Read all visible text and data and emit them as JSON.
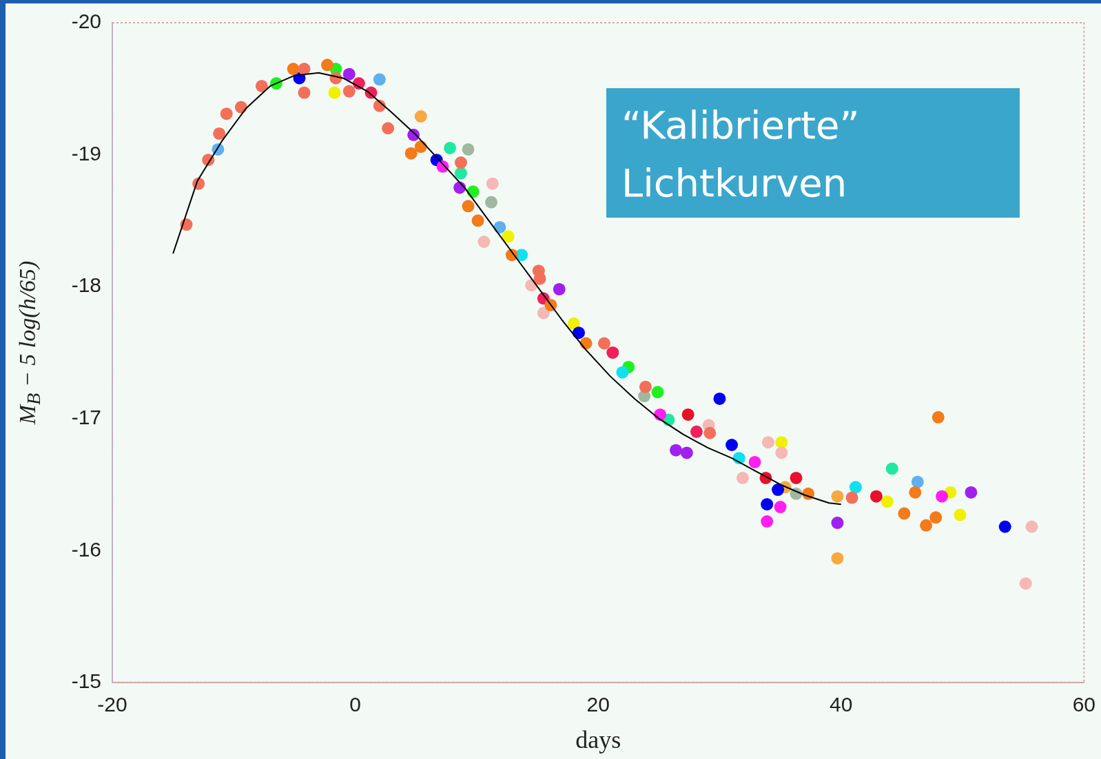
{
  "chart_data": {
    "type": "scatter",
    "xlabel": "days",
    "ylabel": "M$_{B}$ − 5 log(h/65)",
    "annotations": [
      "“Kalibrierte”\nLichtkurven"
    ],
    "xlim": [
      -20,
      60
    ],
    "xticks": [
      -20,
      0,
      20,
      40,
      60
    ],
    "ylim": [
      -15,
      -20
    ],
    "yticks": [
      -20,
      -19,
      -18,
      -17,
      -16,
      -15
    ],
    "marker": "circle",
    "legend": false,
    "series": [
      {
        "type": "line",
        "marker": "none",
        "color": "#000000",
        "x": [
          -15,
          -13,
          -11,
          -9,
          -7,
          -5,
          -3,
          -1,
          1,
          3,
          5,
          7,
          9,
          11,
          13,
          15,
          17,
          19,
          21,
          23,
          25,
          27,
          29,
          31,
          33,
          35,
          37,
          39,
          40
        ],
        "values": [
          -18.25,
          -18.8,
          -19.1,
          -19.35,
          -19.52,
          -19.6,
          -19.62,
          -19.58,
          -19.48,
          -19.32,
          -19.15,
          -18.95,
          -18.75,
          -18.5,
          -18.25,
          -18.0,
          -17.75,
          -17.52,
          -17.32,
          -17.15,
          -17.0,
          -16.88,
          -16.78,
          -16.7,
          -16.6,
          -16.5,
          -16.42,
          -16.36,
          -16.35
        ]
      },
      {
        "color": "#f2705a",
        "x": [
          -13.9,
          -12.9,
          -12.1,
          -11.2,
          -10.6,
          -9.4,
          -7.7,
          -4.2,
          -4.2,
          -1.6,
          -0.5,
          2.0,
          2.7,
          8.7,
          15.1,
          15.2,
          20.5,
          23.9,
          29.2,
          40.9
        ],
        "values": [
          -18.47,
          -18.78,
          -18.96,
          -19.16,
          -19.31,
          -19.36,
          -19.52,
          -19.65,
          -19.47,
          -19.58,
          -19.48,
          -19.37,
          -19.2,
          -18.94,
          -18.12,
          -18.06,
          -17.57,
          -17.24,
          -16.89,
          -16.4
        ]
      },
      {
        "color": "#f47a1a",
        "x": [
          -5.1,
          -2.3,
          4.6,
          5.4,
          9.3,
          10.1,
          12.9,
          16.1,
          19.0,
          37.3,
          48.0,
          46.1,
          47.0,
          45.2,
          47.8
        ],
        "values": [
          -19.65,
          -19.68,
          -19.01,
          -19.06,
          -18.61,
          -18.5,
          -18.24,
          -17.86,
          -17.57,
          -16.43,
          -17.01,
          -16.44,
          -16.19,
          -16.28,
          -16.25
        ]
      },
      {
        "color": "#f5b8b5",
        "x": [
          10.6,
          11.3,
          14.5,
          15.5,
          31.9,
          34.0,
          35.1,
          55.7,
          55.2,
          29.1
        ],
        "values": [
          -18.34,
          -18.78,
          -18.01,
          -17.8,
          -16.55,
          -16.82,
          -16.74,
          -16.18,
          -15.75,
          -16.95
        ]
      },
      {
        "color": "#e8102a",
        "x": [
          33.8,
          36.3,
          42.9,
          27.4
        ],
        "values": [
          -16.55,
          -16.55,
          -16.41,
          -17.03
        ]
      },
      {
        "color": "#f0205a",
        "x": [
          0.3,
          1.3,
          15.5,
          21.2,
          28.1
        ],
        "values": [
          -19.54,
          -19.47,
          -17.91,
          -17.5,
          -16.9
        ]
      },
      {
        "color": "#ff20ee",
        "x": [
          7.2,
          25.1,
          32.9,
          33.9,
          35.0,
          48.3
        ],
        "values": [
          -18.91,
          -17.03,
          -16.67,
          -16.22,
          -16.33,
          -16.41
        ]
      },
      {
        "color": "#a020f0",
        "x": [
          -0.5,
          4.8,
          8.6,
          16.8,
          26.4,
          27.3,
          39.7,
          50.7
        ],
        "values": [
          -19.61,
          -19.15,
          -18.75,
          -17.98,
          -16.76,
          -16.74,
          -16.21,
          -16.44
        ]
      },
      {
        "color": "#0000f0",
        "x": [
          -4.6,
          6.7,
          18.4,
          30.0,
          31.0,
          33.9,
          34.8,
          53.5
        ],
        "values": [
          -19.58,
          -18.96,
          -17.65,
          -17.15,
          -16.8,
          -16.35,
          -16.46,
          -16.18
        ]
      },
      {
        "color": "#10e0f0",
        "x": [
          13.7,
          22.0,
          31.6,
          41.2
        ],
        "values": [
          -18.24,
          -17.35,
          -16.7,
          -16.48
        ]
      },
      {
        "color": "#20f020",
        "x": [
          -6.5,
          -1.6,
          9.7,
          24.9,
          22.5
        ],
        "values": [
          -19.54,
          -19.65,
          -18.72,
          -17.2,
          -17.39
        ]
      },
      {
        "color": "#20e8a0",
        "x": [
          7.8,
          8.7,
          25.8,
          44.2
        ],
        "values": [
          -19.05,
          -18.86,
          -16.99,
          -16.62
        ]
      },
      {
        "color": "#60b0f0",
        "x": [
          -11.3,
          2.0,
          11.9,
          46.3
        ],
        "values": [
          -19.04,
          -19.57,
          -18.45,
          -16.52
        ]
      },
      {
        "color": "#f0f000",
        "x": [
          -1.7,
          12.6,
          18.0,
          35.1,
          43.8,
          49.0,
          49.8
        ],
        "values": [
          -19.47,
          -18.38,
          -17.72,
          -16.82,
          -16.37,
          -16.44,
          -16.27
        ]
      },
      {
        "color": "#a0b8a0",
        "x": [
          9.3,
          11.2,
          23.8,
          36.3
        ],
        "values": [
          -19.04,
          -18.64,
          -17.17,
          -16.43
        ]
      },
      {
        "color": "#f8a840",
        "x": [
          5.4,
          39.7,
          39.7,
          35.4
        ],
        "values": [
          -19.29,
          -15.94,
          -16.41,
          -16.48
        ]
      }
    ]
  }
}
